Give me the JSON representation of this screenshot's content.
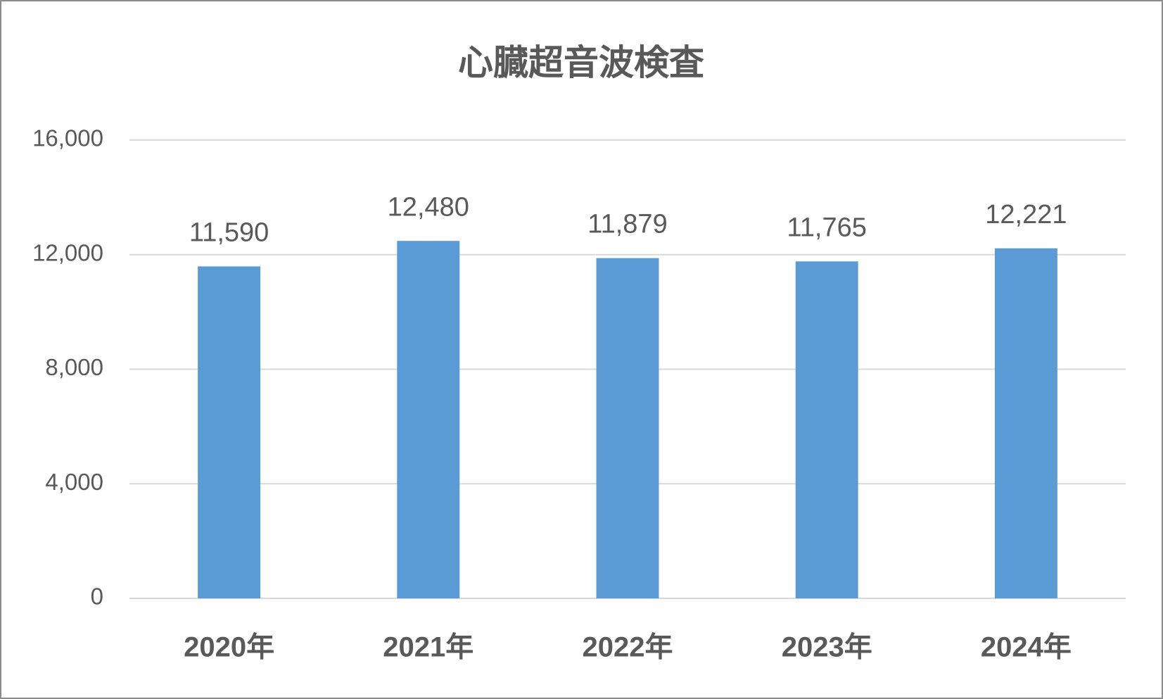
{
  "chart_data": {
    "type": "bar",
    "title": "心臓超音波検査",
    "categories": [
      "2020年",
      "2021年",
      "2022年",
      "2023年",
      "2024年"
    ],
    "values": [
      11590,
      12480,
      11879,
      11765,
      12221
    ],
    "value_labels": [
      "11,590",
      "12,480",
      "11,879",
      "11,765",
      "12,221"
    ],
    "color": "#5b9bd5",
    "ylim": [
      0,
      16000
    ],
    "yticks": [
      0,
      {
        "value": 4000,
        "label": "4,000"
      },
      {
        "value": 8000,
        "label": "8,000"
      },
      {
        "value": 12000,
        "label": "12,000"
      },
      {
        "value": 16000,
        "label": "16,000"
      }
    ],
    "grid": true
  }
}
